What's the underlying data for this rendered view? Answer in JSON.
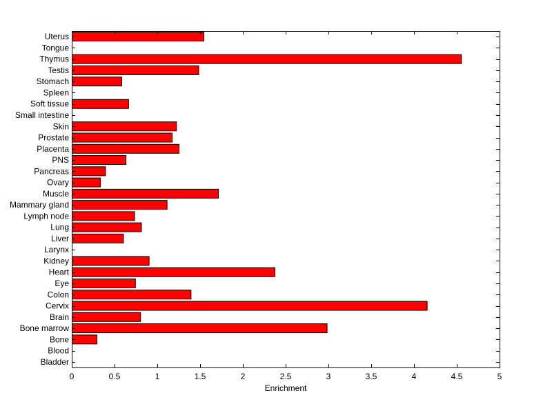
{
  "chart_data": {
    "type": "bar",
    "orientation": "horizontal",
    "title": "",
    "xlabel": "Enrichment",
    "ylabel": "",
    "xlim": [
      0,
      5
    ],
    "x_ticks": [
      0,
      0.5,
      1,
      1.5,
      2,
      2.5,
      3,
      3.5,
      4,
      4.5,
      5
    ],
    "x_tick_labels": [
      "0",
      "0.5",
      "1",
      "1.5",
      "2",
      "2.5",
      "3",
      "3.5",
      "4",
      "4.5",
      "5"
    ],
    "grid": false,
    "legend": "none",
    "bar_color": "#ff0000",
    "categories": [
      "Uterus",
      "Tongue",
      "Thymus",
      "Testis",
      "Stomach",
      "Spleen",
      "Soft tissue",
      "Small intestine",
      "Skin",
      "Prostate",
      "Placenta",
      "PNS",
      "Pancreas",
      "Ovary",
      "Muscle",
      "Mammary gland",
      "Lymph node",
      "Lung",
      "Liver",
      "Larynx",
      "Kidney",
      "Heart",
      "Eye",
      "Colon",
      "Cervix",
      "Brain",
      "Bone marrow",
      "Bone",
      "Blood",
      "Bladder"
    ],
    "values": [
      1.54,
      0,
      4.55,
      1.48,
      0.58,
      0,
      0.66,
      0,
      1.22,
      1.17,
      1.25,
      0.63,
      0.39,
      0.33,
      1.71,
      1.11,
      0.73,
      0.81,
      0.6,
      0,
      0.9,
      2.37,
      0.74,
      1.39,
      4.15,
      0.8,
      2.98,
      0.29,
      0,
      0
    ]
  }
}
